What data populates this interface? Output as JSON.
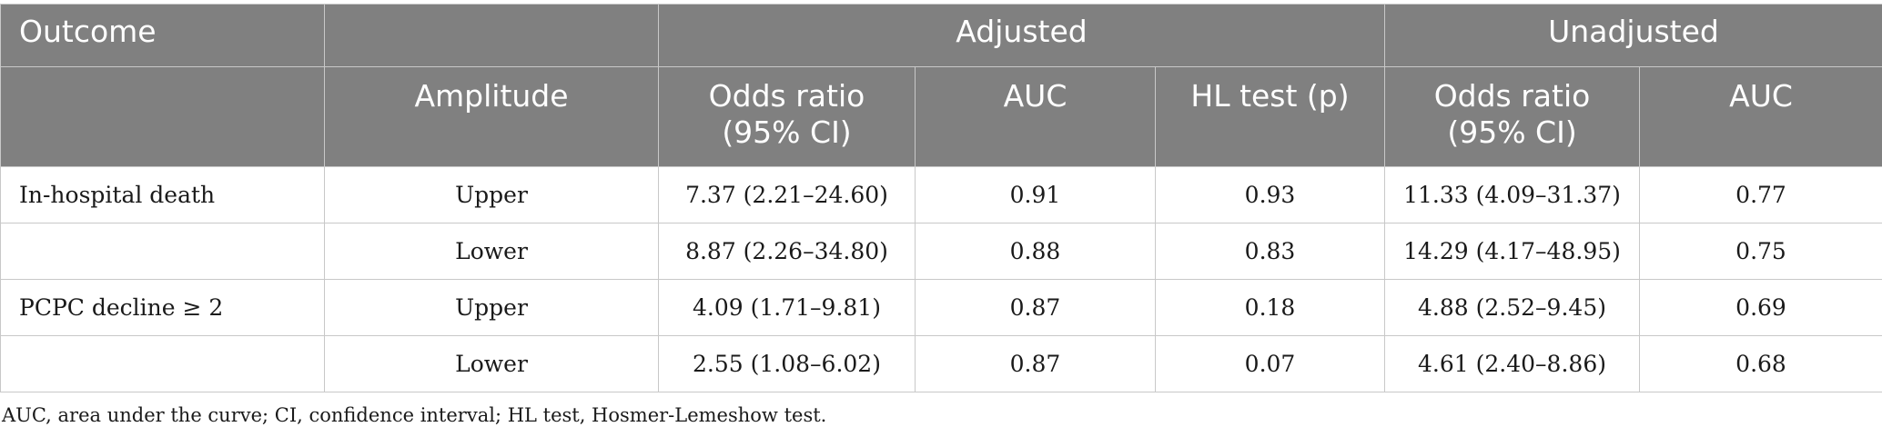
{
  "header": {
    "outcome": "Outcome",
    "adjusted": "Adjusted",
    "unadjusted": "Unadjusted",
    "amplitude": "Amplitude",
    "adj_or_line1": "Odds ratio",
    "adj_or_line2": "(95% CI)",
    "adj_auc": "AUC",
    "adj_hl": "HL test (p)",
    "unadj_or_line1": "Odds ratio",
    "unadj_or_line2": "(95% CI)",
    "unadj_auc": "AUC"
  },
  "rows": [
    {
      "outcome": "In-hospital death",
      "amplitude": "Upper",
      "adj_or": "7.37 (2.21–24.60)",
      "adj_auc": "0.91",
      "hl": "0.93",
      "unadj_or": "11.33 (4.09–31.37)",
      "unadj_auc": "0.77"
    },
    {
      "outcome": "",
      "amplitude": "Lower",
      "adj_or": "8.87 (2.26–34.80)",
      "adj_auc": "0.88",
      "hl": "0.83",
      "unadj_or": "14.29 (4.17–48.95)",
      "unadj_auc": "0.75"
    },
    {
      "outcome": "PCPC decline ≥ 2",
      "amplitude": "Upper",
      "adj_or": "4.09 (1.71–9.81)",
      "adj_auc": "0.87",
      "hl": "0.18",
      "unadj_or": "4.88 (2.52–9.45)",
      "unadj_auc": "0.69"
    },
    {
      "outcome": "",
      "amplitude": "Lower",
      "adj_or": "2.55 (1.08–6.02)",
      "adj_auc": "0.87",
      "hl": "0.07",
      "unadj_or": "4.61 (2.40–8.86)",
      "unadj_auc": "0.68"
    }
  ],
  "footnote": "AUC, area under the curve; CI, confidence interval; HL test, Hosmer-Lemeshow test.",
  "colors": {
    "header_bg": "#808080",
    "header_text": "#ffffff",
    "border": "#c8c8c8"
  }
}
